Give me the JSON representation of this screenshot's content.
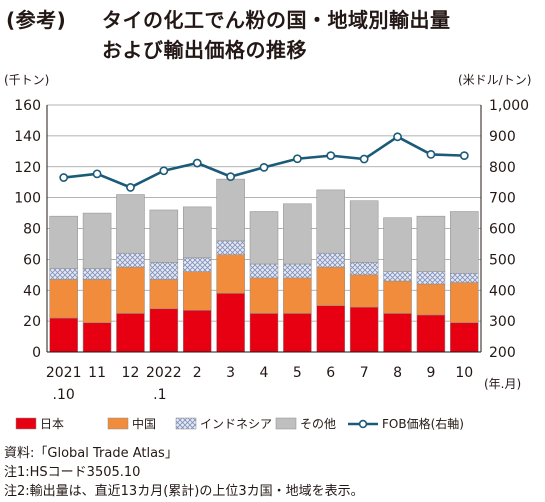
{
  "title": {
    "prefix": "(参考)",
    "line1": "タイの化工でん粉の国・地域別輸出量",
    "line2": "および輸出価格の推移"
  },
  "chart_data": {
    "type": "bar",
    "stacked": true,
    "y_left_unit": "(千トン)",
    "y_right_unit": "(米ドル/トン)",
    "x_unit": "(年.月)",
    "ylim": [
      0,
      160
    ],
    "y2lim": [
      200,
      1000
    ],
    "yticks": [
      "0",
      "20",
      "40",
      "60",
      "80",
      "100",
      "120",
      "140",
      "160"
    ],
    "y2ticks": [
      "200",
      "300",
      "400",
      "500",
      "600",
      "700",
      "800",
      "900",
      "1,000"
    ],
    "categories": [
      [
        "2021",
        ".10"
      ],
      [
        "11",
        ""
      ],
      [
        "12",
        ""
      ],
      [
        "2022",
        ".1"
      ],
      [
        "2",
        ""
      ],
      [
        "3",
        ""
      ],
      [
        "4",
        ""
      ],
      [
        "5",
        ""
      ],
      [
        "6",
        ""
      ],
      [
        "7",
        ""
      ],
      [
        "8",
        ""
      ],
      [
        "9",
        ""
      ],
      [
        "10",
        ""
      ]
    ],
    "series": [
      {
        "name": "日本",
        "color": "#e60012",
        "values": [
          22,
          19,
          25,
          28,
          27,
          38,
          25,
          25,
          30,
          29,
          25,
          24,
          19
        ]
      },
      {
        "name": "中国",
        "color": "#f08c3c",
        "values": [
          25,
          28,
          30,
          19,
          25,
          25,
          23,
          23,
          25,
          21,
          21,
          20,
          26
        ]
      },
      {
        "name": "インドネシア",
        "color": "#dde3f0",
        "pattern": "hatch",
        "values": [
          7,
          7,
          9,
          11,
          9,
          9,
          9,
          9,
          9,
          8,
          6,
          8,
          6
        ]
      },
      {
        "name": "その他",
        "color": "#bfbfbf",
        "values": [
          34,
          36,
          38,
          34,
          33,
          40,
          34,
          39,
          41,
          40,
          35,
          36,
          40
        ]
      }
    ],
    "line_series": {
      "name": "FOB価格(右軸)",
      "color": "#1b5a78",
      "axis": "right",
      "values": [
        765,
        777,
        733,
        787,
        812,
        768,
        798,
        826,
        836,
        825,
        897,
        840,
        836
      ]
    }
  },
  "notes": [
    "資料:「Global Trade Atlas」",
    "注1:HSコード3505.10",
    "注2:輸出量は、直近13カ月(累計)の上位3カ国・地域を表示。"
  ]
}
